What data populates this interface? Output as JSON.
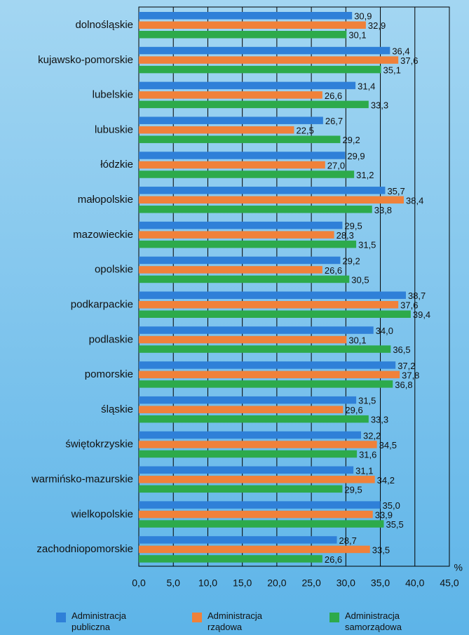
{
  "chart_data": {
    "type": "hbar",
    "categories": [
      "dolnośląskie",
      "kujawsko-pomorskie",
      "lubelskie",
      "lubuskie",
      "łódzkie",
      "małopolskie",
      "mazowieckie",
      "opolskie",
      "podkarpackie",
      "podlaskie",
      "pomorskie",
      "śląskie",
      "świętokrzyskie",
      "warmińsko-mazurskie",
      "wielkopolskie",
      "zachodniopomorskie"
    ],
    "series": [
      {
        "name": "Administracja publiczna",
        "color": "#2f80d8",
        "values": [
          30.9,
          36.4,
          31.4,
          26.7,
          29.9,
          35.7,
          29.5,
          29.2,
          38.7,
          34.0,
          37.2,
          31.5,
          32.2,
          31.1,
          35.0,
          28.7
        ],
        "value_labels": [
          "30,9",
          "36,4",
          "31,4",
          "26,7",
          "29,9",
          "35,7",
          "29,5",
          "29,2",
          "38,7",
          "34,0",
          "37,2",
          "31,5",
          "32,2",
          "31,1",
          "35,0",
          "28,7"
        ]
      },
      {
        "name": "Administracja rządowa",
        "color": "#f0813a",
        "values": [
          32.9,
          37.6,
          26.6,
          22.5,
          27.0,
          38.4,
          28.3,
          26.6,
          37.6,
          30.1,
          37.8,
          29.6,
          34.5,
          34.2,
          33.9,
          33.5
        ],
        "value_labels": [
          "32,9",
          "37,6",
          "26,6",
          "22,5",
          "27,0",
          "38,4",
          "28,3",
          "26,6",
          "37,6",
          "30,1",
          "37,8",
          "29,6",
          "34,5",
          "34,2",
          "33,9",
          "33,5"
        ]
      },
      {
        "name": "Administracja samorządowa",
        "color": "#2daa4b",
        "values": [
          30.1,
          35.1,
          33.3,
          29.2,
          31.2,
          33.8,
          31.5,
          30.5,
          39.4,
          36.5,
          36.8,
          33.3,
          31.6,
          29.5,
          35.5,
          26.6
        ],
        "value_labels": [
          "30,1",
          "35,1",
          "33,3",
          "29,2",
          "31,2",
          "33,8",
          "31,5",
          "30,5",
          "39,4",
          "36,5",
          "36,8",
          "33,3",
          "31,6",
          "29,5",
          "35,5",
          "26,6"
        ]
      }
    ],
    "xlabel": "%",
    "xlim": [
      0,
      45
    ],
    "xticks": [
      {
        "value": 0,
        "label": "0,0"
      },
      {
        "value": 5,
        "label": "5,0"
      },
      {
        "value": 10,
        "label": "10,0"
      },
      {
        "value": 15,
        "label": "15,0"
      },
      {
        "value": 20,
        "label": "20,0"
      },
      {
        "value": 25,
        "label": "25,0"
      },
      {
        "value": 30,
        "label": "30,0"
      },
      {
        "value": 35,
        "label": "35,0"
      },
      {
        "value": 40,
        "label": "40,0"
      },
      {
        "value": 45,
        "label": "45,0"
      }
    ],
    "grid": true
  }
}
